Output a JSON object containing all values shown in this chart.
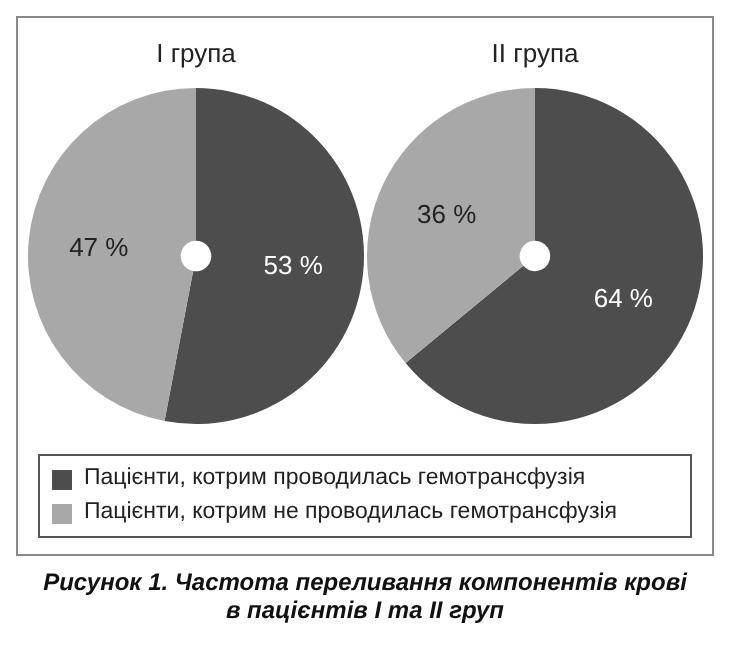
{
  "chart_data": [
    {
      "type": "pie",
      "title": "І група",
      "categories": [
        "Пацієнти, котрим проводилась гемотрансфузія",
        "Пацієнти, котрим не проводилась гемотрансфузія"
      ],
      "values": [
        53,
        47
      ],
      "value_labels": [
        "53 %",
        "47 %"
      ],
      "colors": [
        "#4d4d4d",
        "#a8a8a8"
      ],
      "legend": "bottom",
      "annotations": [
        "Рисунок 1.  Частота переливання компонентів крові\nв пацієнтів І та ІІ груп"
      ]
    },
    {
      "type": "pie",
      "title": "ІІ група",
      "categories": [
        null,
        null
      ],
      "values": [
        64,
        36
      ],
      "value_labels": [
        "64 %",
        "36 %"
      ],
      "colors": [
        "#4d4d4d",
        "#a8a8a8"
      ]
    }
  ]
}
